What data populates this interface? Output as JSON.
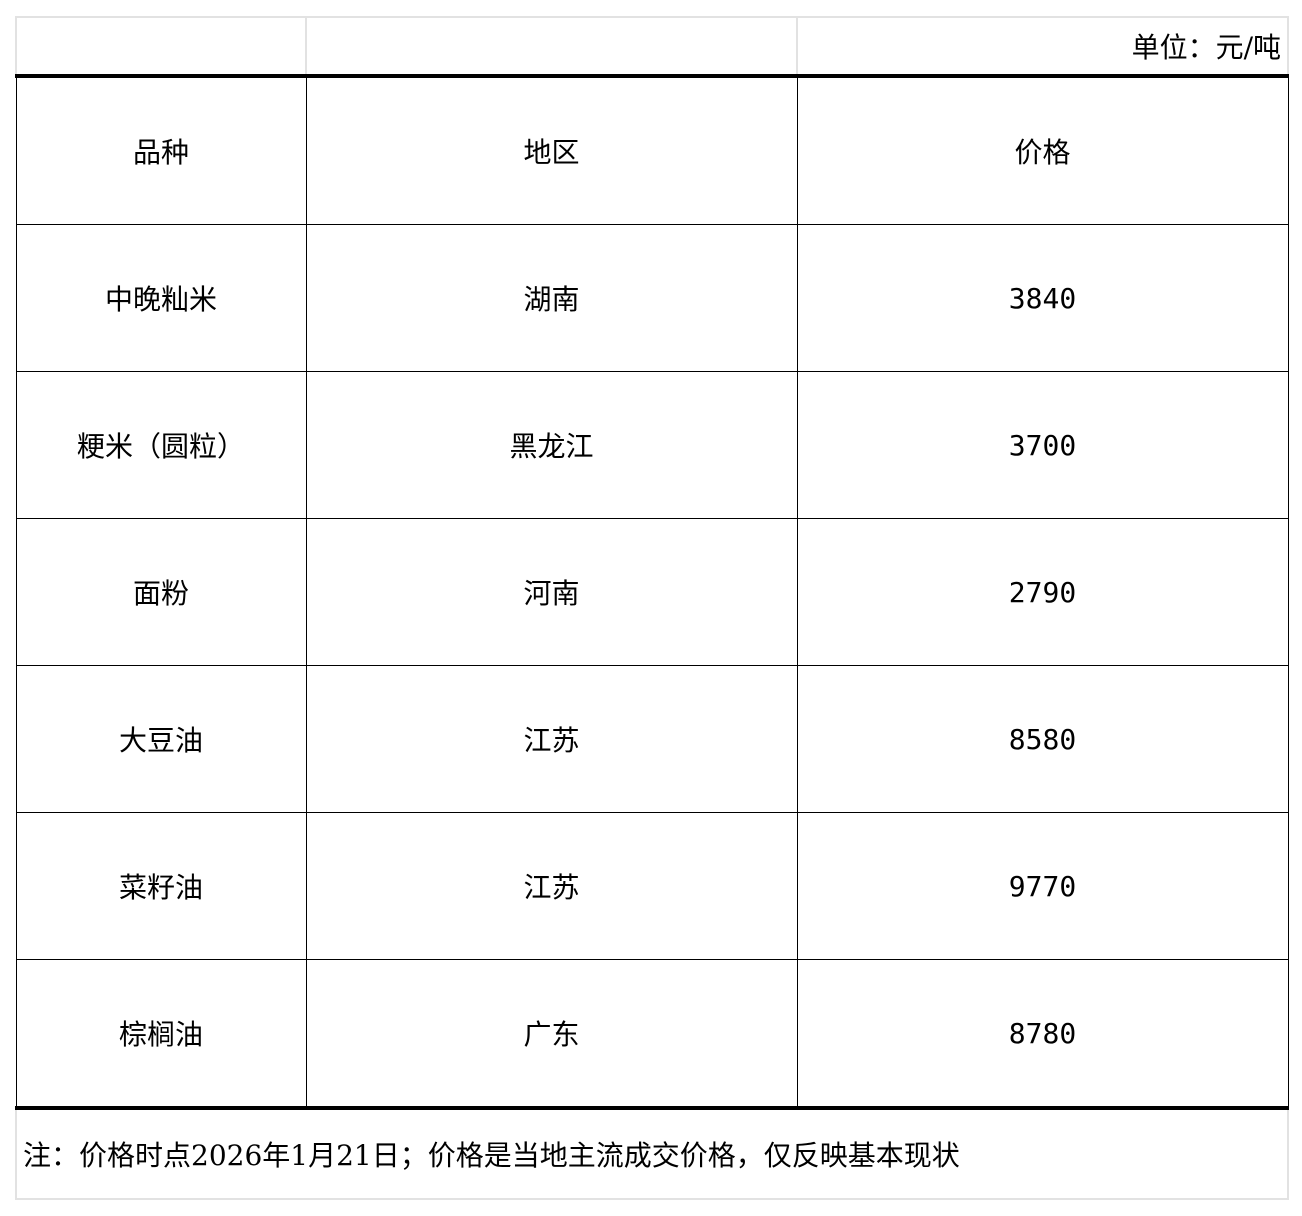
{
  "unit_label": "单位：元/吨",
  "headers": [
    "品种",
    "地区",
    "价格"
  ],
  "rows": [
    {
      "variety": "中晚籼米",
      "region": "湖南",
      "price": "3840"
    },
    {
      "variety": "粳米（圆粒）",
      "region": "黑龙江",
      "price": "3700"
    },
    {
      "variety": "面粉",
      "region": "河南",
      "price": "2790"
    },
    {
      "variety": "大豆油",
      "region": "江苏",
      "price": "8580"
    },
    {
      "variety": "菜籽油",
      "region": "江苏",
      "price": "9770"
    },
    {
      "variety": "棕榈油",
      "region": "广东",
      "price": "8780"
    }
  ],
  "note": "注：价格时点2026年1月21日；价格是当地主流成交价格，仅反映基本现状"
}
